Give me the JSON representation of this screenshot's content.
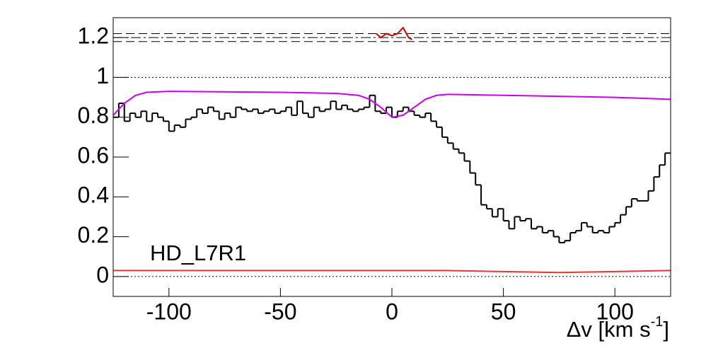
{
  "chart_data": {
    "type": "histogram",
    "annotation": "HD_L7R1",
    "x_label": {
      "text": "Δv [km s",
      "sup": "-1",
      "end": "]"
    },
    "xlim": [
      -125,
      125
    ],
    "xticks": [
      -100,
      -50,
      0,
      50,
      100
    ],
    "ylim": [
      -0.1,
      1.3
    ],
    "yticks": [
      0,
      0.2,
      0.4,
      0.6,
      0.8,
      1,
      1.2
    ],
    "bins": [
      -125,
      -122.5,
      -120,
      -117.5,
      -115,
      -112.5,
      -110,
      -107.5,
      -105,
      -102.5,
      -100,
      -97.5,
      -95,
      -92.5,
      -90,
      -87.5,
      -85,
      -82.5,
      -80,
      -77.5,
      -75,
      -72.5,
      -70,
      -67.5,
      -65,
      -62.5,
      -60,
      -57.5,
      -55,
      -52.5,
      -50,
      -47.5,
      -45,
      -42.5,
      -40,
      -37.5,
      -35,
      -32.5,
      -30,
      -27.5,
      -25,
      -22.5,
      -20,
      -17.5,
      -15,
      -12.5,
      -10,
      -7.5,
      -5,
      -2.5,
      0,
      2.5,
      5,
      7.5,
      10,
      12.5,
      15,
      17.5,
      20,
      22.5,
      25,
      27.5,
      30,
      32.5,
      35,
      37.5,
      40,
      42.5,
      45,
      47.5,
      50,
      52.5,
      55,
      57.5,
      60,
      62.5,
      65,
      67.5,
      70,
      72.5,
      75,
      77.5,
      80,
      82.5,
      85,
      87.5,
      90,
      92.5,
      95,
      97.5,
      100,
      102.5,
      105,
      107.5,
      110,
      112.5,
      115,
      117.5,
      120,
      122.5,
      125
    ],
    "values": [
      0.8,
      0.87,
      0.78,
      0.82,
      0.8,
      0.83,
      0.78,
      0.82,
      0.8,
      0.78,
      0.73,
      0.76,
      0.75,
      0.79,
      0.8,
      0.84,
      0.82,
      0.85,
      0.83,
      0.79,
      0.82,
      0.8,
      0.85,
      0.84,
      0.83,
      0.84,
      0.82,
      0.83,
      0.84,
      0.82,
      0.83,
      0.85,
      0.81,
      0.88,
      0.82,
      0.8,
      0.85,
      0.83,
      0.84,
      0.88,
      0.84,
      0.86,
      0.84,
      0.83,
      0.84,
      0.85,
      0.91,
      0.83,
      0.82,
      0.85,
      0.8,
      0.83,
      0.85,
      0.83,
      0.81,
      0.8,
      0.82,
      0.78,
      0.75,
      0.7,
      0.67,
      0.64,
      0.62,
      0.58,
      0.52,
      0.46,
      0.36,
      0.34,
      0.3,
      0.34,
      0.28,
      0.24,
      0.3,
      0.28,
      0.29,
      0.24,
      0.25,
      0.22,
      0.23,
      0.2,
      0.17,
      0.18,
      0.22,
      0.23,
      0.27,
      0.25,
      0.22,
      0.23,
      0.22,
      0.25,
      0.27,
      0.31,
      0.35,
      0.39,
      0.38,
      0.38,
      0.43,
      0.5,
      0.56,
      0.62
    ],
    "color": "#000000",
    "lines": [
      {
        "color": "#cc00ee",
        "x": [
          -125,
          -120,
          -115,
          -110,
          -100,
          -50,
          -25,
          -15,
          -10,
          -5,
          0,
          5,
          10,
          15,
          20,
          25,
          50,
          100,
          125
        ],
        "values": [
          0.81,
          0.87,
          0.91,
          0.925,
          0.93,
          0.925,
          0.92,
          0.91,
          0.89,
          0.85,
          0.8,
          0.81,
          0.85,
          0.89,
          0.91,
          0.915,
          0.91,
          0.9,
          0.89
        ]
      },
      {
        "color": "#ee3333",
        "x": [
          -125,
          -50,
          0,
          25,
          50,
          75,
          100,
          125
        ],
        "values": [
          0.03,
          0.03,
          0.03,
          0.03,
          0.025,
          0.02,
          0.025,
          0.03
        ]
      },
      {
        "color": "#dd0000",
        "x": [
          -7,
          -5,
          -2.5,
          0,
          2.5,
          5,
          7.5,
          9
        ],
        "values": [
          1.22,
          1.2,
          1.22,
          1.21,
          1.22,
          1.25,
          1.2,
          1.19
        ]
      }
    ],
    "reference_lines": [
      {
        "value": 1.22,
        "style": "dashed"
      },
      {
        "value": 1.2,
        "style": "dashdot"
      },
      {
        "value": 1.18,
        "style": "dashed"
      },
      {
        "value": 1,
        "style": "dotted"
      },
      {
        "value": 0,
        "style": "dotted"
      }
    ]
  }
}
